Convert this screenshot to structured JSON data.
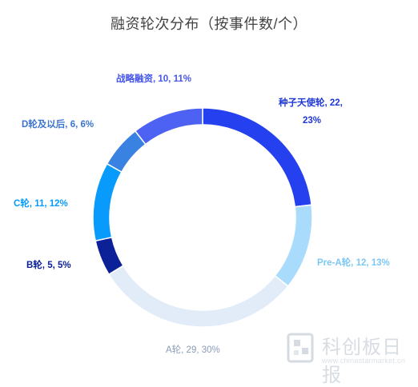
{
  "chart_data": {
    "type": "pie",
    "title": "融资轮次分布（按事件数/个）",
    "donut": true,
    "slices": [
      {
        "label": "种子天使轮",
        "value": 22,
        "percent": "23%",
        "color": "#2541ef"
      },
      {
        "label": "Pre-A轮",
        "value": 12,
        "percent": "13%",
        "color": "#a9dcfc"
      },
      {
        "label": "A轮",
        "value": 29,
        "percent": "30%",
        "color": "#e2ecf9"
      },
      {
        "label": "B轮",
        "value": 5,
        "percent": "5%",
        "color": "#0c2098"
      },
      {
        "label": "C轮",
        "value": 11,
        "percent": "12%",
        "color": "#089bfb"
      },
      {
        "label": "D轮及以后",
        "value": 6,
        "percent": "6%",
        "color": "#3a82e2"
      },
      {
        "label": "战略融资",
        "value": 10,
        "percent": "11%",
        "color": "#4d62f2"
      }
    ],
    "data_labels": [
      {
        "lines": [
          "种子天使轮, 22,",
          "23%"
        ],
        "color": "#1d37d6"
      },
      {
        "lines": [
          "Pre-A轮, 12, 13%"
        ],
        "color": "#7cc8f5"
      },
      {
        "lines": [
          "A轮, 29, 30%"
        ],
        "color": "#8a9bb8"
      },
      {
        "lines": [
          "B轮, 5, 5%"
        ],
        "color": "#0c2098"
      },
      {
        "lines": [
          "C轮, 11, 12%"
        ],
        "color": "#089bfb"
      },
      {
        "lines": [
          "D轮及以后, 6, 6%"
        ],
        "color": "#3a74cf"
      },
      {
        "lines": [
          "战略融资, 10, 11%"
        ],
        "color": "#4455ea"
      }
    ]
  },
  "watermark": {
    "name": "科创板日报",
    "url": "www.chinastarmarket.cn"
  }
}
